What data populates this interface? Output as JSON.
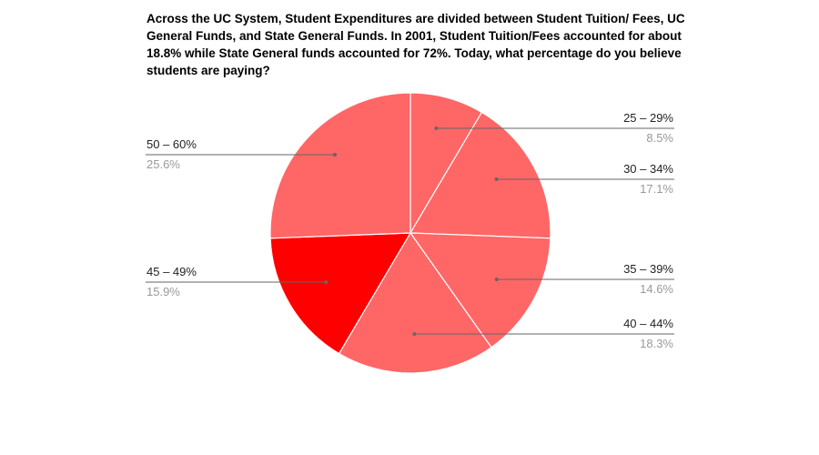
{
  "chart_data": {
    "type": "pie",
    "title": "Across the UC System, Student Expenditures are divided between Student Tuition/ Fees, UC General Funds, and State General Funds. In 2001, Student Tuition/Fees accounted for about 18.8% while State General funds accounted for 72%. Today, what percentage do you believe students are paying?",
    "slices": [
      {
        "label": "25 – 29%",
        "value": 8.5,
        "value_label": "8.5%",
        "color": "#ff6666"
      },
      {
        "label": "30 – 34%",
        "value": 17.1,
        "value_label": "17.1%",
        "color": "#ff6666"
      },
      {
        "label": "35 – 39%",
        "value": 14.6,
        "value_label": "14.6%",
        "color": "#ff6666"
      },
      {
        "label": "40 – 44%",
        "value": 18.3,
        "value_label": "18.3%",
        "color": "#ff6666"
      },
      {
        "label": "45 – 49%",
        "value": 15.9,
        "value_label": "15.9%",
        "color": "#ff0000"
      },
      {
        "label": "50 – 60%",
        "value": 25.6,
        "value_label": "25.6%",
        "color": "#ff6666"
      }
    ],
    "start_angle": "12 o'clock",
    "direction": "clockwise",
    "legend": "callout labels beside slices",
    "label_color": "#222222",
    "value_color": "#999999",
    "leader_color": "#666666",
    "slice_border_color": "#ffffff"
  }
}
